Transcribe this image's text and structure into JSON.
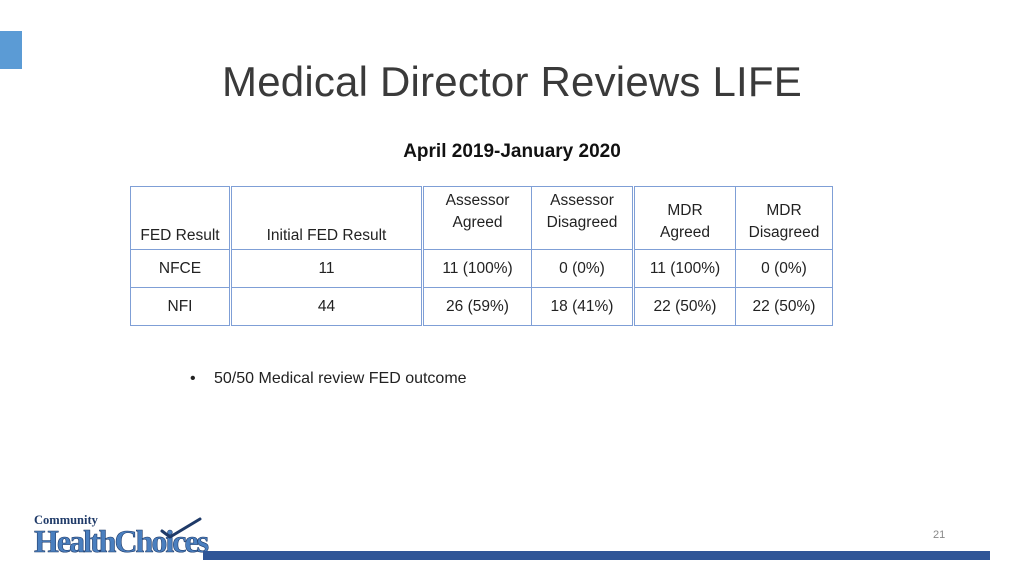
{
  "slide": {
    "title": "Medical Director Reviews LIFE",
    "subtitle": "April 2019-January 2020",
    "page_number": "21"
  },
  "table": {
    "headers": {
      "fed_result": "FED Result",
      "initial_fed_result": "Initial FED Result",
      "assessor_agreed": [
        "Assessor",
        "Agreed"
      ],
      "assessor_disagreed": [
        "Assessor",
        "Disagreed"
      ],
      "mdr_agreed": [
        "MDR",
        "Agreed"
      ],
      "mdr_disagreed": [
        "MDR",
        "Disagreed"
      ]
    },
    "rows": [
      {
        "fed_result": "NFCE",
        "initial_fed_result": "11",
        "assessor_agreed": "11 (100%)",
        "assessor_disagreed": "0 (0%)",
        "mdr_agreed": "11 (100%)",
        "mdr_disagreed": "0 (0%)"
      },
      {
        "fed_result": "NFI",
        "initial_fed_result": "44",
        "assessor_agreed": "26 (59%)",
        "assessor_disagreed": "18 (41%)",
        "mdr_agreed": "22 (50%)",
        "mdr_disagreed": "22 (50%)"
      }
    ]
  },
  "bullets": [
    {
      "symbol": "•",
      "text": "50/50 Medical review FED outcome"
    }
  ],
  "logo": {
    "line1": "Community",
    "line2": "HealthChoices"
  },
  "colors": {
    "accent": "#5b9bd5",
    "table_border": "#7f9fd6",
    "footer_bar": "#2f5597"
  }
}
